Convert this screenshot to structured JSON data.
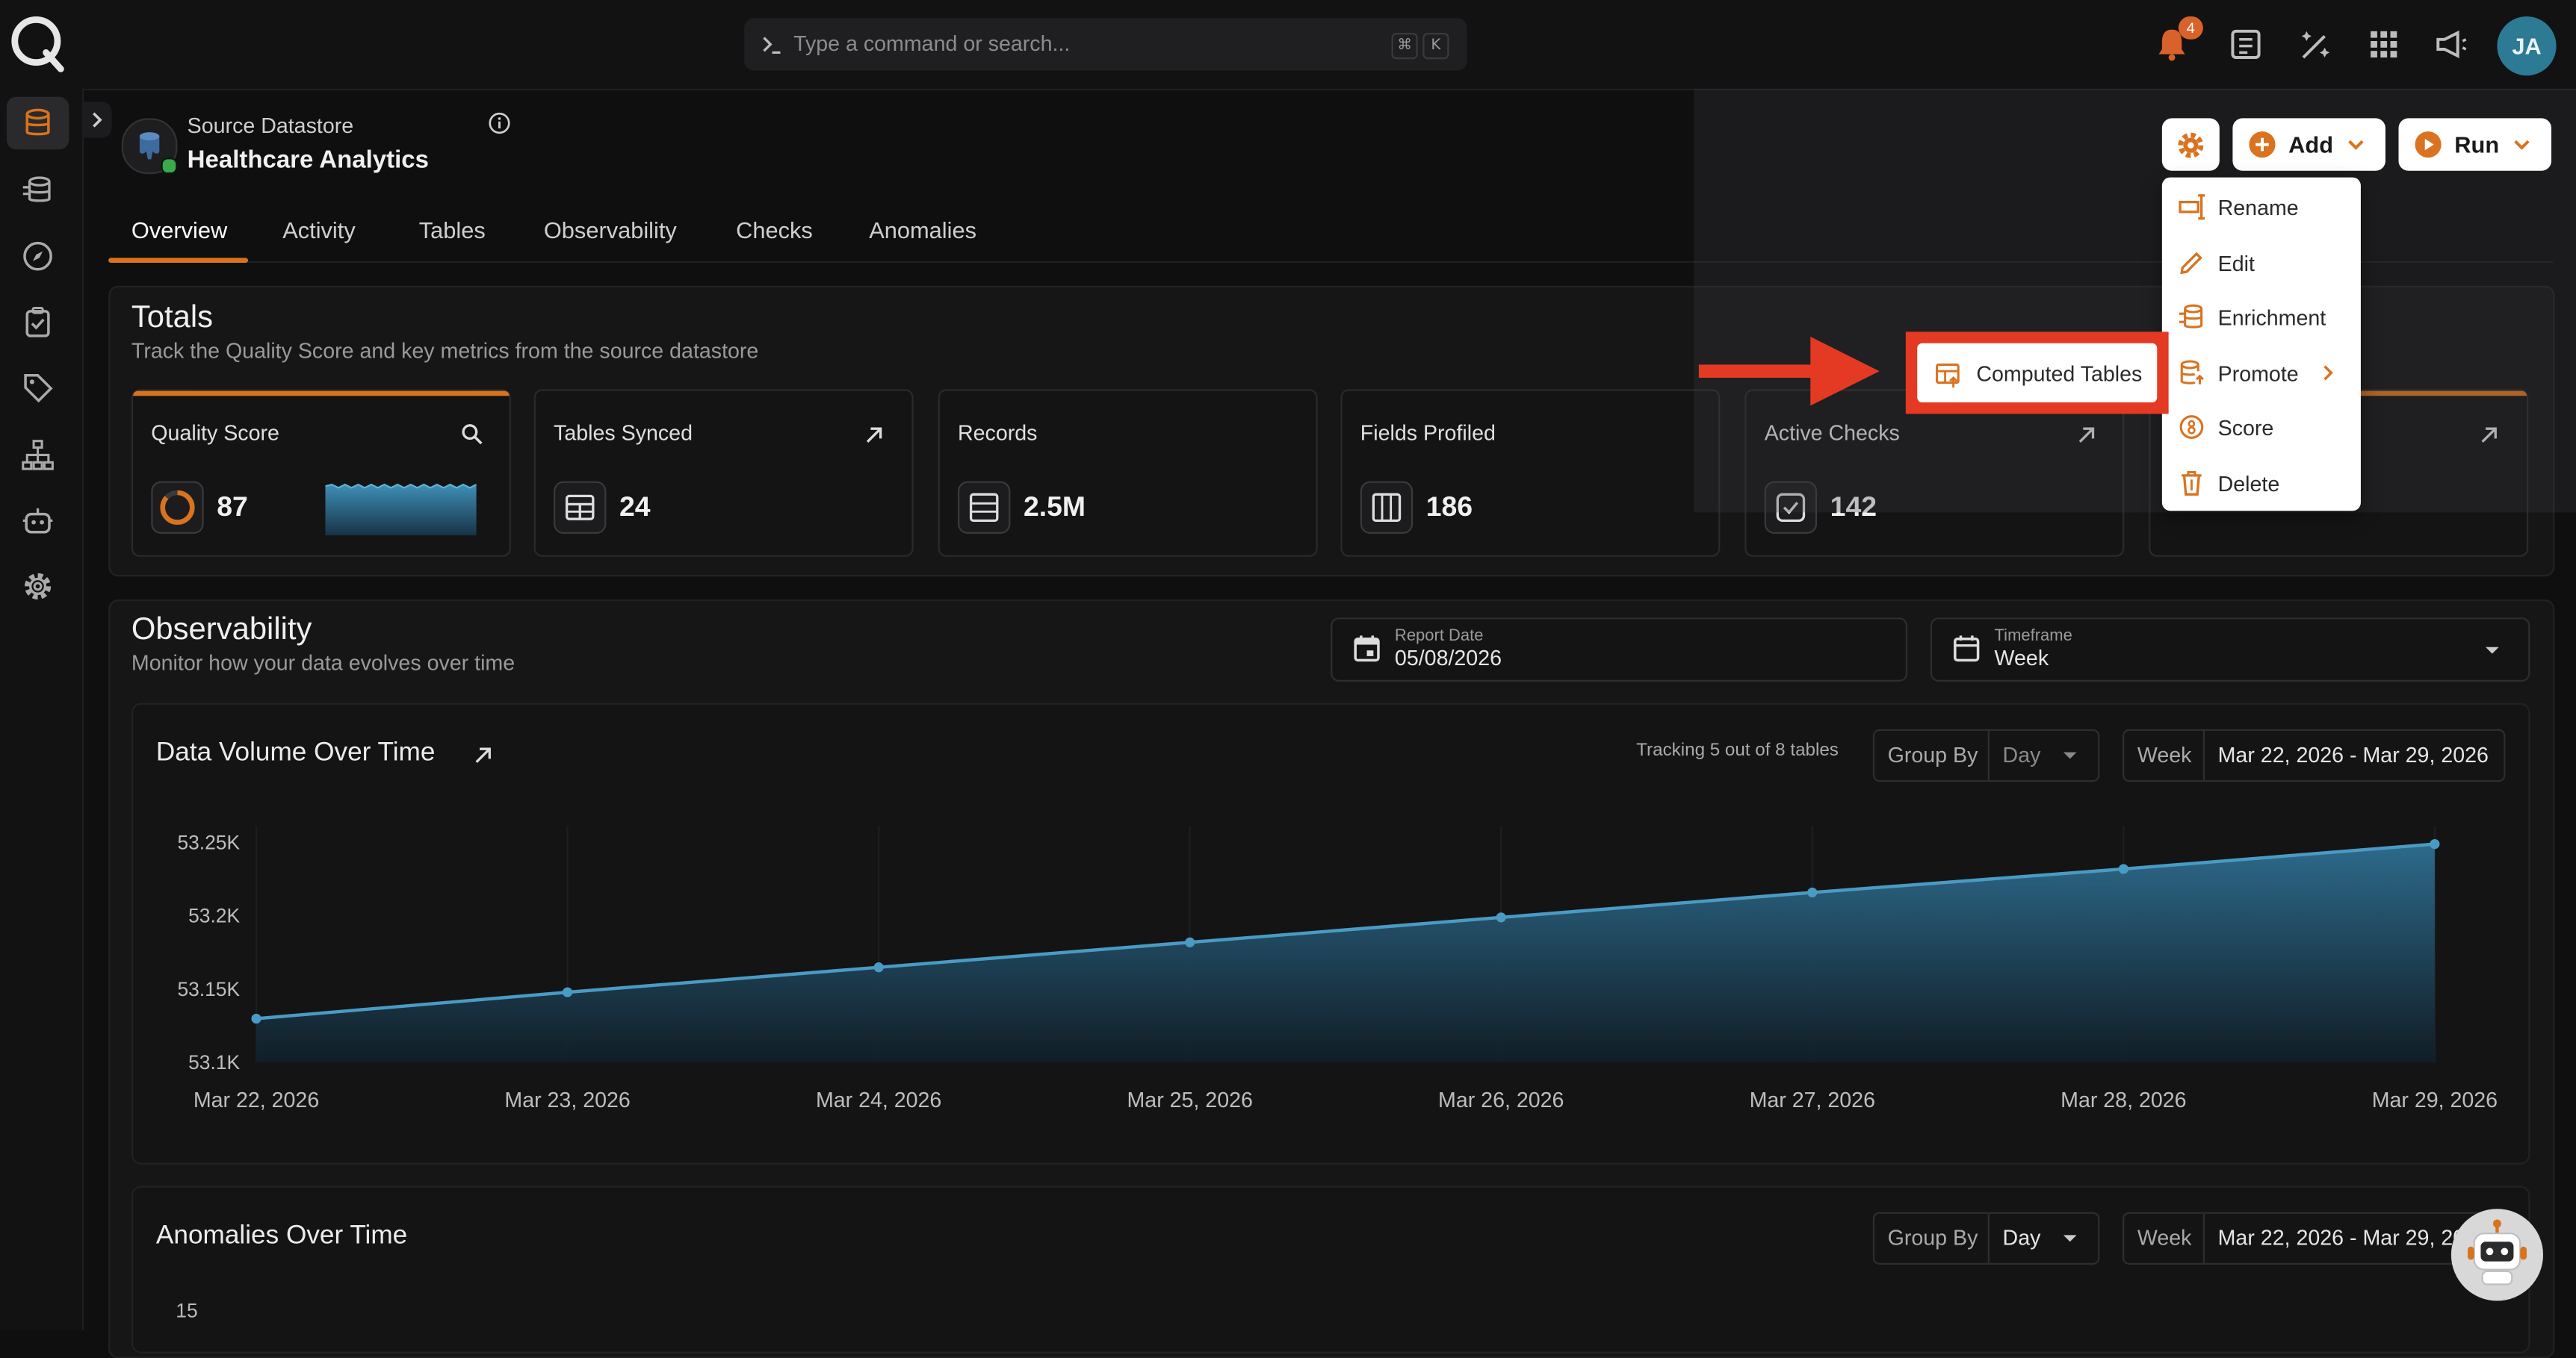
{
  "topbar": {
    "search": {
      "placeholder": "Type a command or search...",
      "shortcut_1": "⌘",
      "shortcut_2": "K"
    },
    "notifications_count": "4",
    "user_initials": "JA"
  },
  "sidebar": {
    "icons": [
      "database-icon",
      "datastores-stack-icon",
      "explore-compass-icon",
      "checks-clipboard-icon",
      "tag-icon",
      "flows-hierarchy-icon",
      "agent-robot-icon",
      "settings-gear-icon"
    ]
  },
  "datastore": {
    "subtitle": "Source Datastore",
    "title": "Healthcare Analytics"
  },
  "tabs": [
    {
      "label": "Overview"
    },
    {
      "label": "Activity"
    },
    {
      "label": "Tables"
    },
    {
      "label": "Observability"
    },
    {
      "label": "Checks"
    },
    {
      "label": "Anomalies"
    }
  ],
  "actions": {
    "add_label": "Add",
    "run_label": "Run"
  },
  "menu": {
    "items": [
      {
        "label": "Rename",
        "icon": "rename-icon"
      },
      {
        "label": "Edit",
        "icon": "pencil-icon"
      },
      {
        "label": "Enrichment",
        "icon": "enrichment-icon"
      },
      {
        "label": "Promote",
        "icon": "promote-icon"
      },
      {
        "label": "Score",
        "icon": "score-icon"
      },
      {
        "label": "Delete",
        "icon": "trash-icon"
      }
    ],
    "submenu_item": "Computed Tables"
  },
  "totals": {
    "title": "Totals",
    "subtitle": "Track the Quality Score and key metrics from the source datastore",
    "cards": [
      {
        "title": "Quality Score",
        "value": "87"
      },
      {
        "title": "Tables Synced",
        "value": "24"
      },
      {
        "title": "Records",
        "value": "2.5M"
      },
      {
        "title": "Fields Profiled",
        "value": "186"
      },
      {
        "title": "Active Checks",
        "value": "142"
      }
    ]
  },
  "observability": {
    "title": "Observability",
    "subtitle": "Monitor how your data evolves over time",
    "report_date_label": "Report Date",
    "report_date": "05/08/2026",
    "timeframe_label": "Timeframe",
    "timeframe": "Week"
  },
  "volume_chart": {
    "title": "Data Volume Over Time",
    "tracking": "Tracking 5 out of 8 tables",
    "group_by_label": "Group By",
    "group_by": "Day",
    "week_label": "Week",
    "week_range": "Mar 22, 2026 - Mar 29, 2026"
  },
  "anomalies_chart": {
    "title": "Anomalies Over Time",
    "group_by_label": "Group By",
    "group_by": "Day",
    "week_label": "Week",
    "week_range": "Mar 22, 2026 - Mar 29, 2026",
    "first_tick": "15"
  },
  "colors": {
    "accent": "#d9731f",
    "line": "#4a9bc4",
    "highlight": "#e43a24"
  },
  "chart_data": {
    "type": "area",
    "x": [
      "Mar 22, 2026",
      "Mar 23, 2026",
      "Mar 24, 2026",
      "Mar 25, 2026",
      "Mar 26, 2026",
      "Mar 27, 2026",
      "Mar 28, 2026",
      "Mar 29, 2026"
    ],
    "values": [
      53130,
      53148,
      53165,
      53182,
      53199,
      53216,
      53232,
      53249
    ],
    "y_ticks": [
      "53.1K",
      "53.15K",
      "53.2K",
      "53.25K"
    ],
    "ylim": [
      53100,
      53250
    ]
  }
}
